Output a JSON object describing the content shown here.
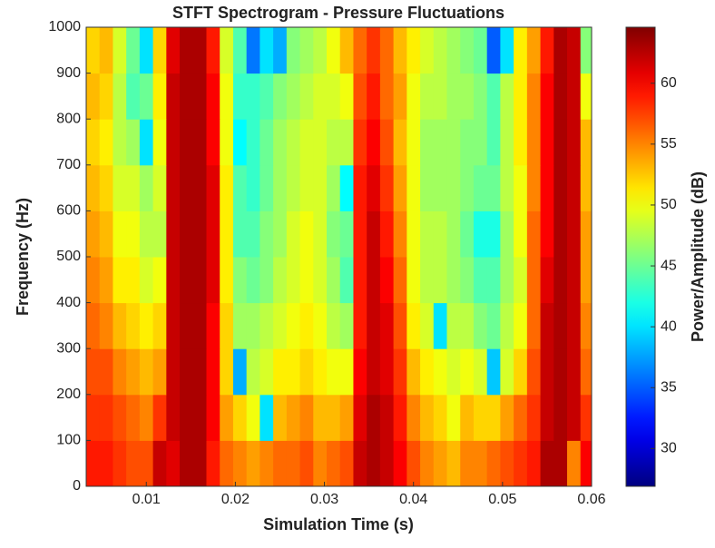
{
  "chart_data": {
    "type": "heatmap",
    "title": "STFT Spectrogram - Pressure Fluctuations",
    "x_label": "Simulation Time (s)",
    "y_label": "Frequency (Hz)",
    "colorbar_label": "Power/Amplitude (dB)",
    "colormap": "jet",
    "x": [
      0.004,
      0.0055,
      0.007,
      0.0085,
      0.01,
      0.0115,
      0.013,
      0.0145,
      0.016,
      0.0175,
      0.019,
      0.0205,
      0.022,
      0.0235,
      0.025,
      0.0265,
      0.028,
      0.0295,
      0.031,
      0.0325,
      0.034,
      0.0355,
      0.037,
      0.0385,
      0.04,
      0.0415,
      0.043,
      0.0445,
      0.046,
      0.0475,
      0.049,
      0.0505,
      0.052,
      0.0535,
      0.055,
      0.0565,
      0.058,
      0.0595
    ],
    "y": [
      50,
      150,
      250,
      350,
      450,
      550,
      650,
      750,
      850,
      950
    ],
    "z": [
      [
        59,
        59,
        58,
        57,
        57,
        62,
        61,
        63,
        63,
        59,
        56,
        55,
        54,
        55,
        56,
        56,
        57,
        55,
        56,
        57,
        62,
        63,
        62,
        60,
        57,
        55,
        54,
        53,
        55,
        55,
        56,
        57,
        58,
        59,
        63,
        63,
        55,
        60
      ],
      [
        58,
        58,
        57,
        56,
        55,
        58,
        62,
        63,
        63,
        60,
        54,
        52,
        50,
        40,
        53,
        54,
        55,
        53,
        53,
        54,
        61,
        63,
        62,
        59,
        55,
        53,
        52,
        50,
        53,
        52,
        52,
        54,
        56,
        58,
        62,
        63,
        62,
        58
      ],
      [
        57,
        57,
        55,
        54,
        53,
        54,
        62,
        63,
        63,
        60,
        52,
        38,
        48,
        49,
        51,
        51,
        52,
        51,
        50,
        50,
        60,
        62,
        61,
        58,
        53,
        51,
        50,
        49,
        50,
        49,
        39,
        49,
        52,
        57,
        62,
        63,
        62,
        56
      ],
      [
        56,
        55,
        53,
        52,
        51,
        52,
        62,
        63,
        63,
        60,
        52,
        47,
        47,
        48,
        49,
        50,
        51,
        50,
        48,
        47,
        59,
        62,
        61,
        57,
        51,
        49,
        40,
        48,
        48,
        46,
        45,
        48,
        50,
        56,
        62,
        63,
        62,
        55
      ],
      [
        55,
        54,
        51,
        51,
        49,
        50,
        62,
        63,
        63,
        61,
        51,
        46,
        45,
        46,
        48,
        49,
        50,
        49,
        47,
        44,
        59,
        62,
        60,
        56,
        50,
        48,
        48,
        47,
        46,
        44,
        44,
        47,
        49,
        56,
        61,
        63,
        62,
        54
      ],
      [
        54,
        53,
        50,
        50,
        48,
        48,
        62,
        63,
        63,
        61,
        51,
        44,
        44,
        46,
        47,
        49,
        50,
        49,
        46,
        45,
        59,
        62,
        59,
        55,
        50,
        48,
        48,
        47,
        45,
        42,
        42,
        47,
        50,
        56,
        60,
        63,
        62,
        54
      ],
      [
        53,
        52,
        49,
        49,
        47,
        49,
        62,
        63,
        63,
        61,
        51,
        44,
        43,
        45,
        47,
        48,
        49,
        49,
        47,
        41,
        59,
        61,
        58,
        54,
        50,
        47,
        47,
        47,
        46,
        45,
        45,
        48,
        50,
        55,
        60,
        63,
        62,
        53
      ],
      [
        52,
        51,
        48,
        47,
        40,
        50,
        62,
        63,
        63,
        60,
        50,
        41,
        43,
        45,
        47,
        48,
        49,
        49,
        48,
        48,
        58,
        60,
        57,
        53,
        50,
        47,
        47,
        47,
        46,
        46,
        44,
        48,
        51,
        55,
        60,
        63,
        62,
        53
      ],
      [
        53,
        52,
        48,
        44,
        45,
        51,
        62,
        63,
        63,
        60,
        50,
        43,
        43,
        44,
        46,
        47,
        48,
        49,
        49,
        50,
        57,
        59,
        56,
        54,
        50,
        48,
        48,
        47,
        47,
        46,
        44,
        48,
        51,
        55,
        60,
        63,
        62,
        50
      ],
      [
        52,
        53,
        49,
        45,
        40,
        52,
        61,
        63,
        63,
        59,
        49,
        44,
        36,
        40,
        38,
        46,
        47,
        48,
        50,
        53,
        56,
        58,
        56,
        53,
        51,
        49,
        48,
        47,
        46,
        45,
        35,
        40,
        51,
        54,
        59,
        63,
        62,
        46
      ]
    ],
    "xlim": [
      0.00325,
      0.06
    ],
    "ylim": [
      0,
      1000
    ],
    "xticks": [
      0.01,
      0.02,
      0.03,
      0.04,
      0.05,
      0.06
    ],
    "yticks": [
      0,
      100,
      200,
      300,
      400,
      500,
      600,
      700,
      800,
      900,
      1000
    ],
    "clim": [
      26.9,
      64.6
    ],
    "cticks": [
      30,
      35,
      40,
      45,
      50,
      55,
      60
    ]
  }
}
